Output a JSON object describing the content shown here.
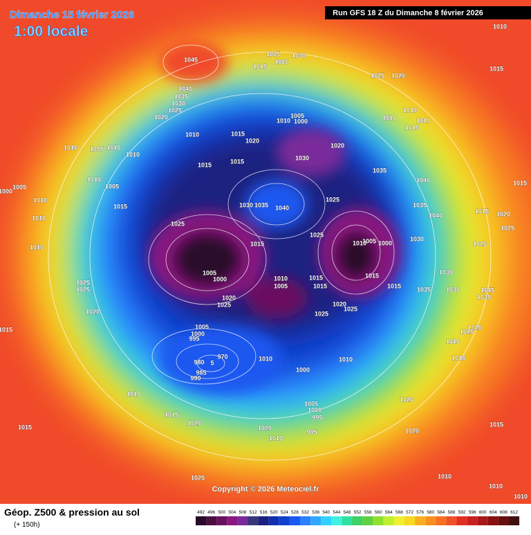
{
  "header": {
    "date_line": "Dimanche 15 février 2026",
    "time_line": "1:00 locale",
    "run": "Run GFS 18 Z du Dimanche 8 février 2026"
  },
  "copyright": "Copyright © 2026 Meteociel.fr",
  "footer": {
    "title": "Géop. Z500 & pression au sol",
    "lead": "(+ 150h)"
  },
  "legend": {
    "values": [
      492,
      496,
      500,
      504,
      508,
      512,
      516,
      520,
      524,
      528,
      532,
      536,
      540,
      544,
      548,
      552,
      556,
      560,
      564,
      568,
      572,
      576,
      580,
      584,
      588,
      592,
      596,
      600,
      604,
      608,
      612
    ]
  },
  "pressure_labels": [
    "1045",
    "1005",
    "1015",
    "1000",
    "1030",
    "1010",
    "1015",
    "1025",
    "1020",
    "1040",
    "1035",
    "1030",
    "1025",
    "1020",
    "1005",
    "1010",
    "1000",
    "1010",
    "1010",
    "1015",
    "1010",
    "1010",
    "1015",
    "1020",
    "1020",
    "1010",
    "1005",
    "1010",
    "1010",
    "1015",
    "1015",
    "1030",
    "1035",
    "1010",
    "1005",
    "1005",
    "1000",
    "1040",
    "1015",
    "1025",
    "1030",
    "1035",
    "1040",
    "1015",
    "1010",
    "1010",
    "1035",
    "1015",
    "1020",
    "1025",
    "1040",
    "1025",
    "1025",
    "1030",
    "1020",
    "1015",
    "1010",
    "1005",
    "1000",
    "1010",
    "1005",
    "1000",
    "1010",
    "1005",
    "1015",
    "1015",
    "1015",
    "1015",
    "1030",
    "1035",
    "1030",
    "1045",
    "1025",
    "1025",
    "1035",
    "1020",
    "1025",
    "1020",
    "1025",
    "1025",
    "1020",
    "1005",
    "1015",
    "1000",
    "1025",
    "1025",
    "995",
    "1010",
    "970",
    "980",
    "5",
    "985",
    "990",
    "1010",
    "1010",
    "1010",
    "1000",
    "1010",
    "1005",
    "1000",
    "995",
    "1020",
    "1015",
    "1020",
    "1015",
    "1020",
    "995",
    "1010",
    "1020",
    "1015",
    "1025",
    "1010",
    "1010",
    "1010"
  ]
}
